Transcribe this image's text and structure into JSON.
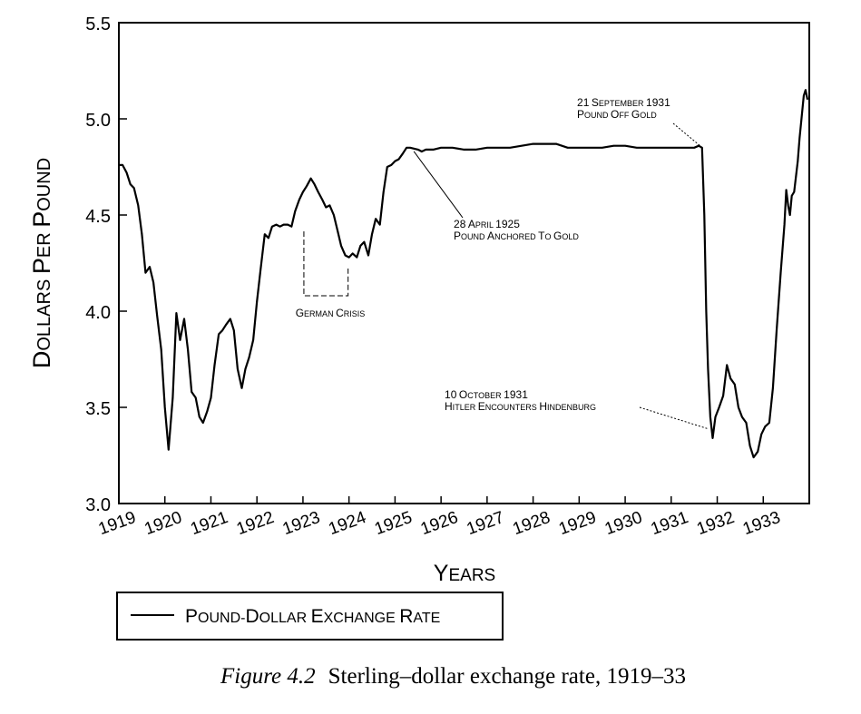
{
  "chart_data": {
    "type": "line",
    "ylabel": "Dollars Per Pound",
    "xlabel": "Years",
    "ylim": [
      3.0,
      5.5
    ],
    "xlim": [
      1919,
      1934
    ],
    "y_ticks": [
      "3.0",
      "3.5",
      "4.0",
      "4.5",
      "5.0",
      "5.5"
    ],
    "x_ticks": [
      "1919",
      "1920",
      "1921",
      "1922",
      "1923",
      "1924",
      "1925",
      "1926",
      "1927",
      "1928",
      "1929",
      "1930",
      "1931",
      "1932",
      "1933"
    ],
    "grid": false,
    "legend_position": "bottom-left",
    "series": [
      {
        "name": "Pound-Dollar Exchange Rate",
        "points": [
          [
            1919.0,
            4.76
          ],
          [
            1919.08,
            4.76
          ],
          [
            1919.17,
            4.72
          ],
          [
            1919.25,
            4.66
          ],
          [
            1919.33,
            4.64
          ],
          [
            1919.42,
            4.55
          ],
          [
            1919.5,
            4.4
          ],
          [
            1919.58,
            4.2
          ],
          [
            1919.67,
            4.23
          ],
          [
            1919.75,
            4.15
          ],
          [
            1919.83,
            3.98
          ],
          [
            1919.92,
            3.8
          ],
          [
            1920.0,
            3.5
          ],
          [
            1920.08,
            3.28
          ],
          [
            1920.17,
            3.55
          ],
          [
            1920.25,
            3.99
          ],
          [
            1920.33,
            3.85
          ],
          [
            1920.42,
            3.96
          ],
          [
            1920.5,
            3.8
          ],
          [
            1920.58,
            3.58
          ],
          [
            1920.67,
            3.55
          ],
          [
            1920.75,
            3.45
          ],
          [
            1920.83,
            3.42
          ],
          [
            1920.92,
            3.48
          ],
          [
            1921.0,
            3.55
          ],
          [
            1921.08,
            3.72
          ],
          [
            1921.17,
            3.88
          ],
          [
            1921.25,
            3.9
          ],
          [
            1921.33,
            3.93
          ],
          [
            1921.42,
            3.96
          ],
          [
            1921.5,
            3.9
          ],
          [
            1921.58,
            3.7
          ],
          [
            1921.67,
            3.6
          ],
          [
            1921.75,
            3.7
          ],
          [
            1921.83,
            3.76
          ],
          [
            1921.92,
            3.85
          ],
          [
            1922.0,
            4.05
          ],
          [
            1922.08,
            4.22
          ],
          [
            1922.17,
            4.4
          ],
          [
            1922.25,
            4.38
          ],
          [
            1922.33,
            4.44
          ],
          [
            1922.42,
            4.45
          ],
          [
            1922.5,
            4.44
          ],
          [
            1922.58,
            4.45
          ],
          [
            1922.67,
            4.45
          ],
          [
            1922.75,
            4.44
          ],
          [
            1922.83,
            4.52
          ],
          [
            1922.92,
            4.58
          ],
          [
            1923.0,
            4.62
          ],
          [
            1923.08,
            4.65
          ],
          [
            1923.17,
            4.69
          ],
          [
            1923.25,
            4.66
          ],
          [
            1923.33,
            4.62
          ],
          [
            1923.42,
            4.58
          ],
          [
            1923.5,
            4.54
          ],
          [
            1923.58,
            4.55
          ],
          [
            1923.67,
            4.5
          ],
          [
            1923.75,
            4.42
          ],
          [
            1923.83,
            4.34
          ],
          [
            1923.92,
            4.29
          ],
          [
            1924.0,
            4.28
          ],
          [
            1924.08,
            4.3
          ],
          [
            1924.17,
            4.28
          ],
          [
            1924.25,
            4.34
          ],
          [
            1924.33,
            4.36
          ],
          [
            1924.42,
            4.29
          ],
          [
            1924.5,
            4.4
          ],
          [
            1924.58,
            4.48
          ],
          [
            1924.67,
            4.45
          ],
          [
            1924.75,
            4.62
          ],
          [
            1924.83,
            4.75
          ],
          [
            1924.92,
            4.76
          ],
          [
            1925.0,
            4.78
          ],
          [
            1925.08,
            4.79
          ],
          [
            1925.17,
            4.82
          ],
          [
            1925.25,
            4.85
          ],
          [
            1925.33,
            4.85
          ],
          [
            1925.5,
            4.84
          ],
          [
            1925.58,
            4.83
          ],
          [
            1925.67,
            4.84
          ],
          [
            1925.83,
            4.84
          ],
          [
            1926.0,
            4.85
          ],
          [
            1926.25,
            4.85
          ],
          [
            1926.5,
            4.84
          ],
          [
            1926.75,
            4.84
          ],
          [
            1927.0,
            4.85
          ],
          [
            1927.25,
            4.85
          ],
          [
            1927.5,
            4.85
          ],
          [
            1927.75,
            4.86
          ],
          [
            1928.0,
            4.87
          ],
          [
            1928.25,
            4.87
          ],
          [
            1928.5,
            4.87
          ],
          [
            1928.75,
            4.85
          ],
          [
            1929.0,
            4.85
          ],
          [
            1929.25,
            4.85
          ],
          [
            1929.5,
            4.85
          ],
          [
            1929.75,
            4.86
          ],
          [
            1930.0,
            4.86
          ],
          [
            1930.25,
            4.85
          ],
          [
            1930.5,
            4.85
          ],
          [
            1930.75,
            4.85
          ],
          [
            1931.0,
            4.85
          ],
          [
            1931.25,
            4.85
          ],
          [
            1931.5,
            4.85
          ],
          [
            1931.6,
            4.86
          ],
          [
            1931.67,
            4.85
          ],
          [
            1931.72,
            4.5
          ],
          [
            1931.76,
            4.0
          ],
          [
            1931.8,
            3.7
          ],
          [
            1931.85,
            3.45
          ],
          [
            1931.9,
            3.34
          ],
          [
            1931.96,
            3.45
          ],
          [
            1932.04,
            3.5
          ],
          [
            1932.13,
            3.56
          ],
          [
            1932.21,
            3.72
          ],
          [
            1932.29,
            3.65
          ],
          [
            1932.38,
            3.62
          ],
          [
            1932.46,
            3.5
          ],
          [
            1932.54,
            3.45
          ],
          [
            1932.63,
            3.42
          ],
          [
            1932.71,
            3.3
          ],
          [
            1932.79,
            3.24
          ],
          [
            1932.88,
            3.27
          ],
          [
            1932.96,
            3.36
          ],
          [
            1933.04,
            3.4
          ],
          [
            1933.13,
            3.42
          ],
          [
            1933.21,
            3.6
          ],
          [
            1933.29,
            3.9
          ],
          [
            1933.38,
            4.2
          ],
          [
            1933.46,
            4.45
          ],
          [
            1933.5,
            4.63
          ],
          [
            1933.54,
            4.55
          ],
          [
            1933.58,
            4.5
          ],
          [
            1933.62,
            4.6
          ],
          [
            1933.67,
            4.62
          ],
          [
            1933.71,
            4.7
          ],
          [
            1933.75,
            4.78
          ],
          [
            1933.79,
            4.9
          ],
          [
            1933.83,
            5.0
          ],
          [
            1933.88,
            5.12
          ],
          [
            1933.92,
            5.15
          ],
          [
            1933.96,
            5.1
          ]
        ]
      }
    ],
    "annotations": [
      {
        "lines": [
          "21 September 1931",
          "Pound Off Gold"
        ],
        "target": [
          1931.67,
          4.85
        ]
      },
      {
        "lines": [
          "28 April 1925",
          "Pound Anchored to Gold"
        ],
        "target": [
          1925.33,
          4.85
        ]
      },
      {
        "lines": [
          "10 October 1931",
          "Hitler Encounters Hindenburg"
        ],
        "target": [
          1931.78,
          3.39
        ]
      },
      {
        "lines": [
          "German Crisis"
        ],
        "range": [
          1923.0,
          1924.0
        ]
      }
    ]
  },
  "legend": {
    "label": "Pound-Dollar Exchange Rate"
  },
  "caption": {
    "figure": "Figure 4.2",
    "text": "Sterling–dollar exchange rate, 1919–33"
  }
}
